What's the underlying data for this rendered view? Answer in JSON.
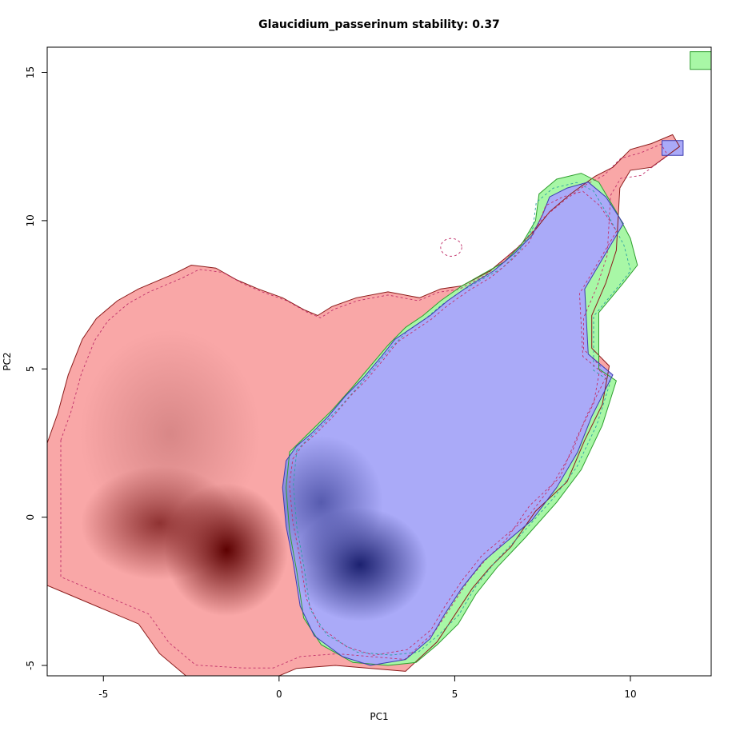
{
  "chart_data": {
    "type": "heatmap",
    "title": "Glaucidium_passerinum stability: 0.37",
    "xlabel": "PC1",
    "ylabel": "PC2",
    "xlim": [
      -6.6,
      12.3
    ],
    "ylim": [
      -5.35,
      15.85
    ],
    "x_ticks": [
      -5,
      0,
      5,
      10
    ],
    "y_ticks": [
      -5,
      0,
      5,
      10,
      15
    ],
    "grid": false,
    "colors": {
      "red_fill": "#f9a7a7",
      "blue_fill": "#aaaaf8",
      "green_fill": "#a8f7a6",
      "red_line": "#8b1a1a",
      "blue_line": "#3b3bb0",
      "green_line": "#2e9e2e",
      "red_core": "#5c0000",
      "blue_core": "#1c2170"
    },
    "series": [
      {
        "name": "",
        "color": "#f9a7a7",
        "outline": [
          [
            -6.6,
            2.5
          ],
          [
            -6.3,
            3.5
          ],
          [
            -6.0,
            4.8
          ],
          [
            -5.6,
            6.0
          ],
          [
            -5.2,
            6.7
          ],
          [
            -4.6,
            7.3
          ],
          [
            -4.0,
            7.7
          ],
          [
            -3.0,
            8.2
          ],
          [
            -2.5,
            8.5
          ],
          [
            -1.8,
            8.4
          ],
          [
            -1.2,
            8.0
          ],
          [
            -0.6,
            7.7
          ],
          [
            0.1,
            7.4
          ],
          [
            0.7,
            7.0
          ],
          [
            1.1,
            6.8
          ],
          [
            1.5,
            7.1
          ],
          [
            2.2,
            7.4
          ],
          [
            3.1,
            7.6
          ],
          [
            4.0,
            7.4
          ],
          [
            4.6,
            7.7
          ],
          [
            5.2,
            7.8
          ],
          [
            6.0,
            8.3
          ],
          [
            6.8,
            9.1
          ],
          [
            7.3,
            9.7
          ],
          [
            7.7,
            10.3
          ],
          [
            8.3,
            10.9
          ],
          [
            9.0,
            11.5
          ],
          [
            9.5,
            11.8
          ],
          [
            10.0,
            12.4
          ],
          [
            10.6,
            12.6
          ],
          [
            11.2,
            12.9
          ],
          [
            11.4,
            12.5
          ],
          [
            10.6,
            11.8
          ],
          [
            10.0,
            11.7
          ],
          [
            9.7,
            11.1
          ],
          [
            9.6,
            9.0
          ],
          [
            9.3,
            7.9
          ],
          [
            8.9,
            6.8
          ],
          [
            8.9,
            5.7
          ],
          [
            9.4,
            5.1
          ],
          [
            9.2,
            3.8
          ],
          [
            8.7,
            2.6
          ],
          [
            8.2,
            1.2
          ],
          [
            7.3,
            0.2
          ],
          [
            6.6,
            -1.0
          ],
          [
            6.0,
            -1.7
          ],
          [
            5.5,
            -2.4
          ],
          [
            4.5,
            -4.2
          ],
          [
            3.6,
            -5.2
          ],
          [
            1.6,
            -5.0
          ],
          [
            0.5,
            -5.1
          ],
          [
            -0.3,
            -5.5
          ],
          [
            -1.2,
            -5.5
          ],
          [
            -2.6,
            -5.4
          ],
          [
            -3.4,
            -4.6
          ],
          [
            -4.0,
            -3.6
          ],
          [
            -5.0,
            -3.1
          ],
          [
            -6.0,
            -2.6
          ],
          [
            -6.6,
            -2.3
          ]
        ]
      },
      {
        "name": "",
        "color": "#aaaaf8",
        "outline": [
          [
            0.2,
            1.9
          ],
          [
            0.5,
            2.4
          ],
          [
            0.9,
            2.8
          ],
          [
            1.4,
            3.4
          ],
          [
            1.9,
            4.1
          ],
          [
            2.4,
            4.7
          ],
          [
            2.9,
            5.4
          ],
          [
            3.3,
            6.0
          ],
          [
            3.8,
            6.4
          ],
          [
            4.3,
            6.8
          ],
          [
            4.8,
            7.3
          ],
          [
            5.4,
            7.8
          ],
          [
            6.1,
            8.3
          ],
          [
            6.7,
            8.9
          ],
          [
            7.2,
            9.5
          ],
          [
            7.5,
            10.2
          ],
          [
            7.7,
            10.8
          ],
          [
            8.2,
            11.1
          ],
          [
            8.8,
            11.3
          ],
          [
            9.3,
            10.8
          ],
          [
            9.8,
            9.9
          ],
          [
            9.4,
            9.1
          ],
          [
            8.7,
            7.7
          ],
          [
            8.8,
            5.5
          ],
          [
            9.5,
            4.8
          ],
          [
            8.9,
            3.4
          ],
          [
            8.5,
            2.2
          ],
          [
            7.9,
            1.0
          ],
          [
            7.2,
            -0.1
          ],
          [
            6.5,
            -0.8
          ],
          [
            5.8,
            -1.5
          ],
          [
            5.2,
            -2.4
          ],
          [
            4.7,
            -3.3
          ],
          [
            4.3,
            -4.1
          ],
          [
            3.6,
            -4.8
          ],
          [
            2.6,
            -5.0
          ],
          [
            1.8,
            -4.7
          ],
          [
            1.0,
            -4.0
          ],
          [
            0.6,
            -3.0
          ],
          [
            0.4,
            -1.5
          ],
          [
            0.2,
            -0.3
          ],
          [
            0.1,
            1.0
          ]
        ]
      },
      {
        "name": "",
        "color": "#a8f7a6",
        "outline": [
          [
            0.3,
            2.2
          ],
          [
            0.9,
            2.9
          ],
          [
            1.5,
            3.6
          ],
          [
            2.1,
            4.4
          ],
          [
            2.6,
            5.1
          ],
          [
            3.1,
            5.8
          ],
          [
            3.6,
            6.4
          ],
          [
            4.1,
            6.8
          ],
          [
            4.6,
            7.3
          ],
          [
            5.2,
            7.8
          ],
          [
            5.8,
            8.2
          ],
          [
            6.4,
            8.6
          ],
          [
            6.9,
            9.2
          ],
          [
            7.3,
            10.0
          ],
          [
            7.4,
            10.9
          ],
          [
            7.9,
            11.4
          ],
          [
            8.6,
            11.6
          ],
          [
            9.1,
            11.3
          ],
          [
            9.6,
            10.3
          ],
          [
            10.0,
            9.4
          ],
          [
            10.2,
            8.5
          ],
          [
            9.8,
            7.9
          ],
          [
            9.1,
            6.9
          ],
          [
            9.1,
            5.0
          ],
          [
            9.6,
            4.6
          ],
          [
            9.2,
            3.1
          ],
          [
            8.6,
            1.6
          ],
          [
            7.9,
            0.5
          ],
          [
            7.0,
            -0.7
          ],
          [
            6.2,
            -1.7
          ],
          [
            5.6,
            -2.6
          ],
          [
            5.1,
            -3.6
          ],
          [
            4.5,
            -4.3
          ],
          [
            3.9,
            -4.9
          ],
          [
            3.1,
            -5.0
          ],
          [
            2.1,
            -4.9
          ],
          [
            1.2,
            -4.3
          ],
          [
            0.7,
            -3.4
          ],
          [
            0.5,
            -1.8
          ],
          [
            0.3,
            -0.5
          ],
          [
            0.2,
            1.0
          ]
        ]
      },
      {
        "name": "",
        "color": "#aaaaf8",
        "outline": [
          [
            10.9,
            12.7
          ],
          [
            11.5,
            12.7
          ],
          [
            11.5,
            12.2
          ],
          [
            10.9,
            12.2
          ]
        ]
      },
      {
        "name": "",
        "color": "#a8f7a6",
        "outline": [
          [
            11.7,
            15.7
          ],
          [
            12.3,
            15.7
          ],
          [
            12.3,
            15.1
          ],
          [
            11.7,
            15.1
          ]
        ]
      }
    ],
    "density_cores": [
      {
        "color": "#5c0000",
        "x": -1.5,
        "y": -1.1,
        "sx": 1.1,
        "sy": 1.4,
        "strength": 1.0
      },
      {
        "color": "#7a1a1a",
        "x": -3.4,
        "y": -0.2,
        "sx": 1.4,
        "sy": 1.2,
        "strength": 0.85
      },
      {
        "color": "#b06060",
        "x": -3.1,
        "y": 2.8,
        "sx": 1.6,
        "sy": 2.2,
        "strength": 0.45
      },
      {
        "color": "#1c2170",
        "x": 2.3,
        "y": -1.6,
        "sx": 1.2,
        "sy": 1.2,
        "strength": 1.0
      },
      {
        "color": "#33398f",
        "x": 1.2,
        "y": 0.5,
        "sx": 1.1,
        "sy": 1.4,
        "strength": 0.7
      }
    ],
    "small_circle": {
      "x": 4.9,
      "y": 9.1,
      "r": 0.3
    }
  }
}
